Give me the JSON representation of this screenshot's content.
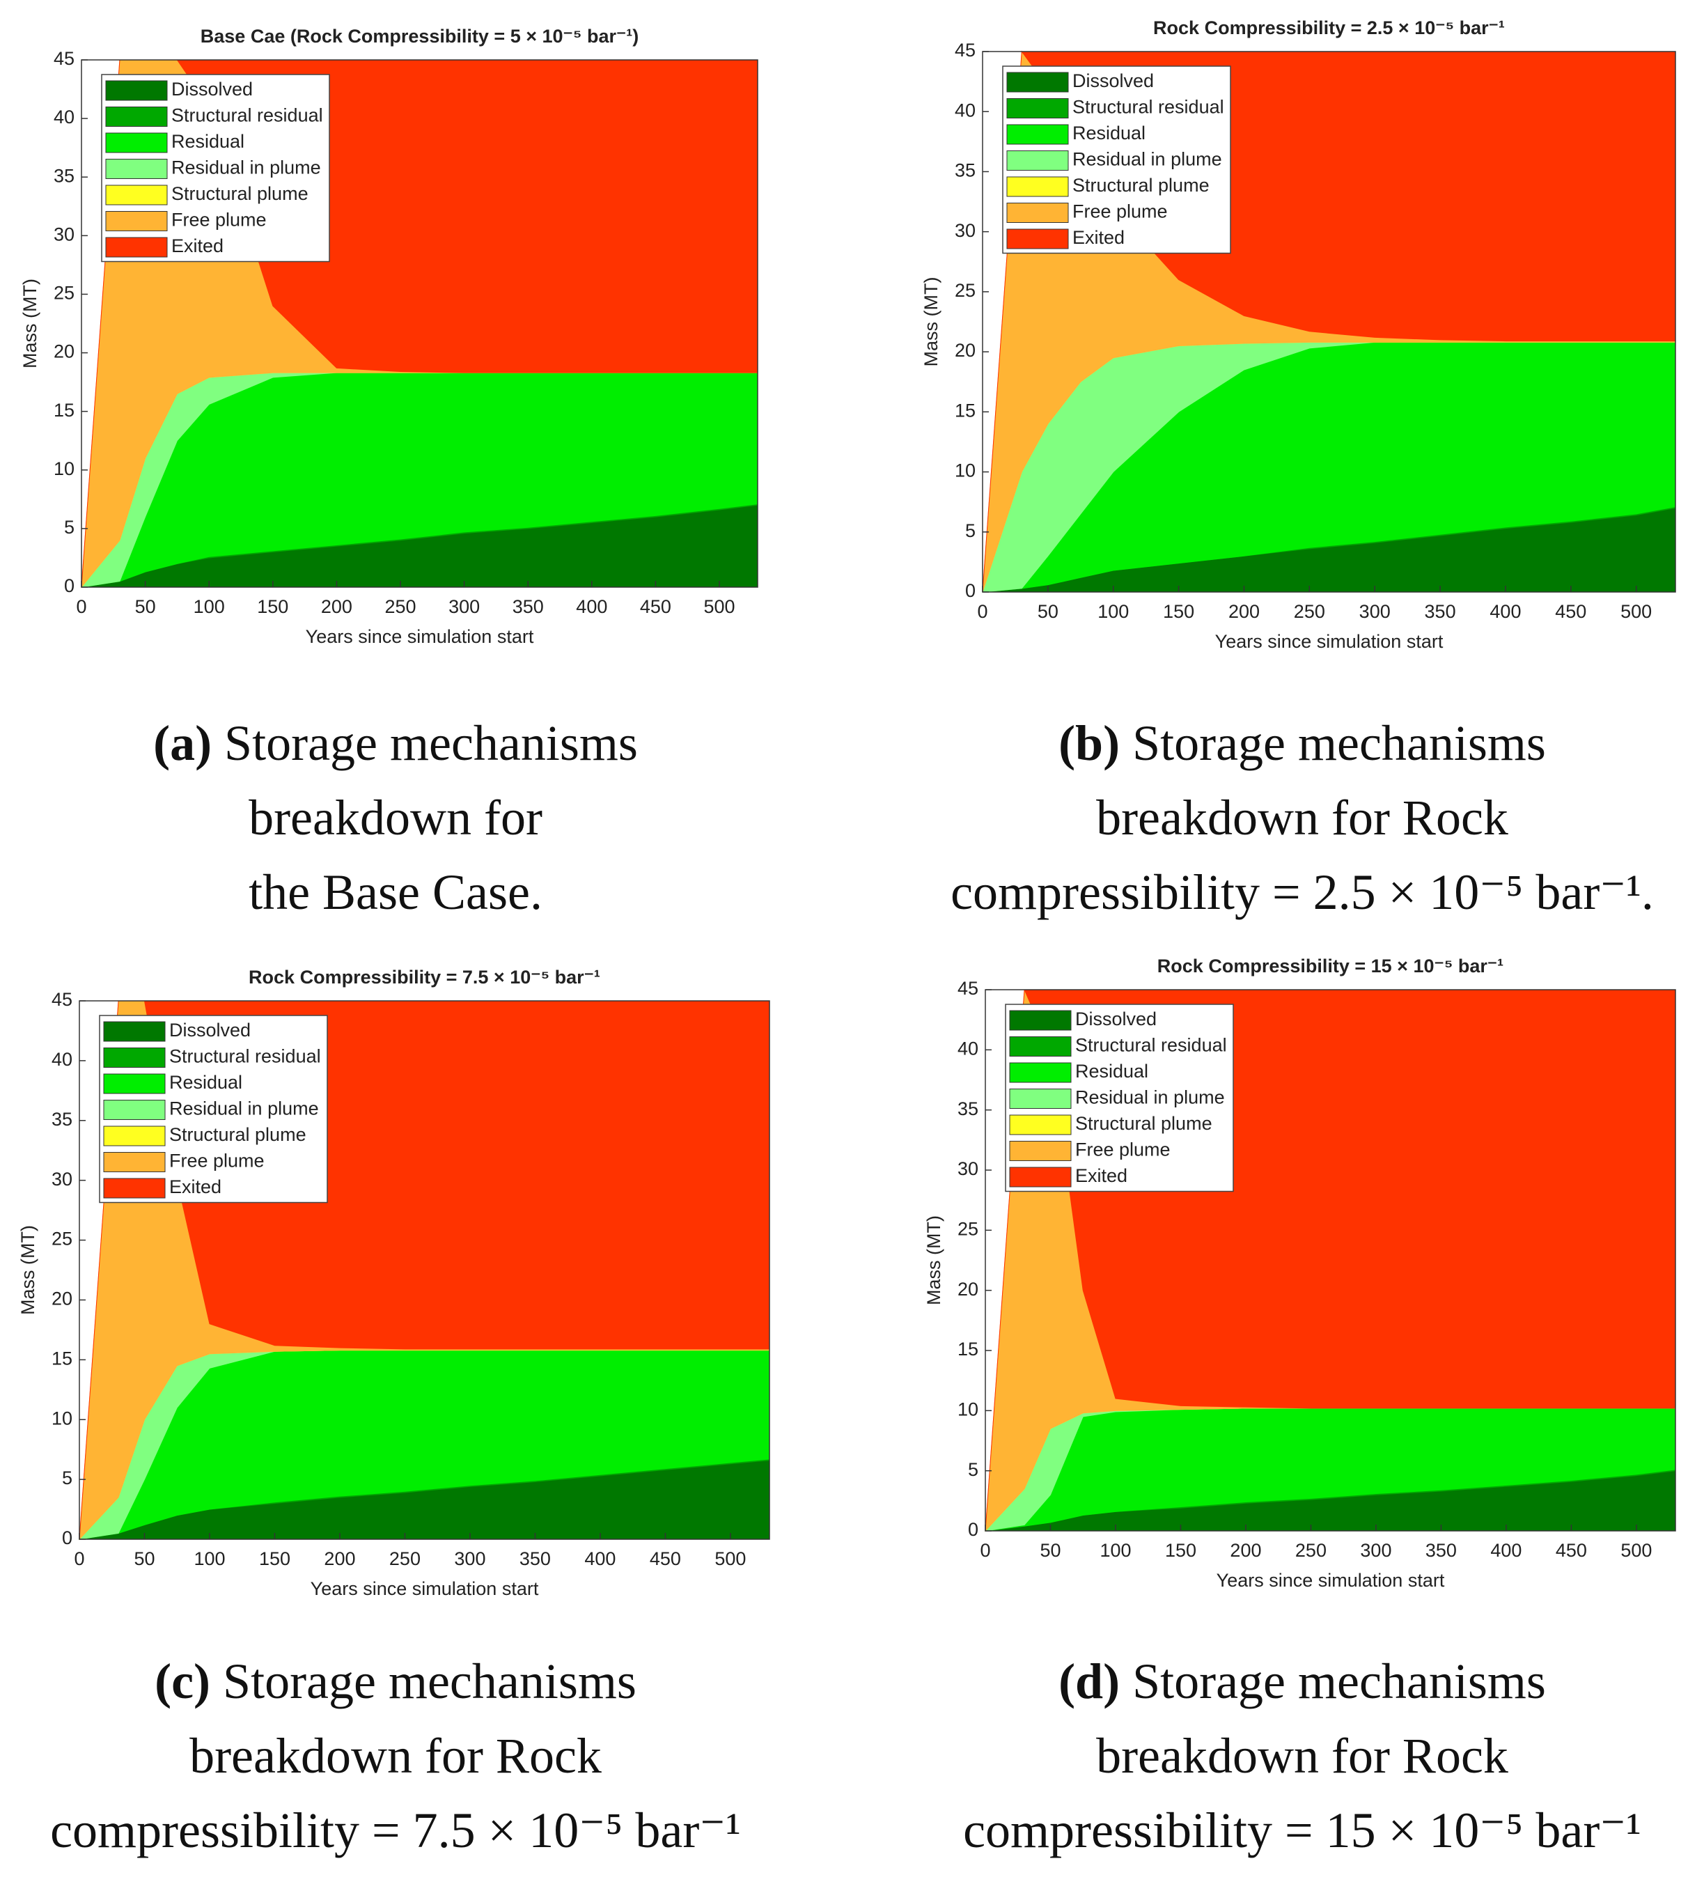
{
  "chart_data": [
    {
      "type": "stacked_area",
      "title": "Base Cae (Rock Compressibility = 5 × 10⁻⁵  bar⁻¹)",
      "x_label": "Years since simulation start",
      "y_label": "Mass (MT)",
      "x": [
        0,
        30,
        50,
        75,
        100,
        150,
        200,
        250,
        300,
        350,
        400,
        450,
        500,
        530
      ],
      "series": [
        {
          "name": "Dissolved",
          "color": "#007800",
          "values": [
            0,
            0.5,
            1.3,
            2,
            2.5,
            3,
            3.5,
            4,
            4.6,
            5,
            5.5,
            6,
            6.6,
            7
          ]
        },
        {
          "name": "Structural residual",
          "color": "#00a800",
          "values": [
            0,
            0,
            0,
            0,
            0.1,
            0.1,
            0.1,
            0.1,
            0.1,
            0.1,
            0.1,
            0.1,
            0.1,
            0.1
          ]
        },
        {
          "name": "Residual",
          "color": "#00ee00",
          "values": [
            0,
            0,
            4.7,
            10.5,
            13,
            14.8,
            14.7,
            14.2,
            13.6,
            13.2,
            12.7,
            12.2,
            11.6,
            11.2
          ]
        },
        {
          "name": "Residual in plume",
          "color": "#80ff80",
          "values": [
            0,
            3.5,
            5,
            4,
            2.3,
            0.4,
            0,
            0,
            0,
            0,
            0,
            0,
            0,
            0
          ]
        },
        {
          "name": "Structural plume",
          "color": "#ffff20",
          "values": [
            0,
            0,
            0,
            0,
            0,
            0,
            0,
            0,
            0,
            0,
            0,
            0,
            0,
            0
          ]
        },
        {
          "name": "Free plume",
          "color": "#ffb434",
          "values": [
            0,
            41,
            34,
            28.5,
            23.1,
            5.7,
            0.4,
            0.1,
            0,
            0,
            0,
            0,
            0,
            0
          ]
        },
        {
          "name": "Exited",
          "color": "#ff3300",
          "values": [
            0,
            0,
            0,
            0,
            4,
            21,
            26.3,
            26.6,
            26.7,
            26.7,
            26.7,
            26.7,
            26.7,
            26.7
          ]
        }
      ],
      "xlim": [
        0,
        530
      ],
      "xticks": [
        0,
        50,
        100,
        150,
        200,
        250,
        300,
        350,
        400,
        450,
        500
      ],
      "ylim": [
        0,
        45
      ],
      "yticks": [
        0,
        5,
        10,
        15,
        20,
        25,
        30,
        35,
        40,
        45
      ],
      "legend": "upper left",
      "caption_label": "(a)",
      "caption_lines": [
        "Storage mechanisms",
        "breakdown for",
        "the Base Case."
      ]
    },
    {
      "type": "stacked_area",
      "title": "Rock Compressibility = 2.5 × 10⁻⁵  bar⁻¹",
      "x_label": "Years since simulation start",
      "y_label": "Mass (MT)",
      "x": [
        0,
        30,
        50,
        75,
        100,
        150,
        200,
        250,
        300,
        350,
        400,
        450,
        500,
        530
      ],
      "series": [
        {
          "name": "Dissolved",
          "color": "#007800",
          "values": [
            0,
            0.3,
            0.6,
            1.2,
            1.8,
            2.4,
            3,
            3.6,
            4.1,
            4.7,
            5.3,
            5.8,
            6.4,
            7
          ]
        },
        {
          "name": "Structural residual",
          "color": "#00a800",
          "values": [
            0,
            0,
            0,
            0,
            0,
            0,
            0,
            0.1,
            0.1,
            0.1,
            0.1,
            0.1,
            0.1,
            0.1
          ]
        },
        {
          "name": "Residual",
          "color": "#00ee00",
          "values": [
            0,
            0,
            2.4,
            5.3,
            8.2,
            12.6,
            15.5,
            16.6,
            16.6,
            16,
            15.4,
            14.9,
            14.3,
            13.7
          ]
        },
        {
          "name": "Residual in plume",
          "color": "#80ff80",
          "values": [
            0,
            9.7,
            11,
            11,
            9.5,
            5.5,
            2.2,
            0.5,
            0,
            0,
            0,
            0,
            0,
            0
          ]
        },
        {
          "name": "Structural plume",
          "color": "#ffff20",
          "values": [
            0,
            0,
            0,
            0,
            0,
            0,
            0,
            0,
            0,
            0,
            0,
            0,
            0,
            0
          ]
        },
        {
          "name": "Free plume",
          "color": "#ffb434",
          "values": [
            0,
            35,
            28,
            19.5,
            12.5,
            5.5,
            2.3,
            0.9,
            0.4,
            0.2,
            0.1,
            0.1,
            0.1,
            0.1
          ]
        },
        {
          "name": "Exited",
          "color": "#ff3300",
          "values": [
            0,
            0,
            3,
            8,
            13,
            19,
            22,
            23.3,
            23.8,
            24,
            24.1,
            24.1,
            24.1,
            24.1
          ]
        }
      ],
      "xlim": [
        0,
        530
      ],
      "xticks": [
        0,
        50,
        100,
        150,
        200,
        250,
        300,
        350,
        400,
        450,
        500
      ],
      "ylim": [
        0,
        45
      ],
      "yticks": [
        0,
        5,
        10,
        15,
        20,
        25,
        30,
        35,
        40,
        45
      ],
      "legend": "upper left",
      "caption_label": "(b)",
      "caption_lines": [
        "Storage mechanisms",
        "breakdown for Rock",
        "compressibility = 2.5 × 10⁻⁵ bar⁻¹."
      ]
    },
    {
      "type": "stacked_area",
      "title": "Rock Compressibility = 7.5 × 10⁻⁵  bar⁻¹",
      "x_label": "Years since simulation start",
      "y_label": "Mass (MT)",
      "x": [
        0,
        30,
        50,
        75,
        100,
        150,
        200,
        250,
        300,
        350,
        400,
        450,
        500,
        530
      ],
      "series": [
        {
          "name": "Dissolved",
          "color": "#007800",
          "values": [
            0,
            0.5,
            1.2,
            2,
            2.5,
            3,
            3.5,
            3.9,
            4.4,
            4.8,
            5.3,
            5.8,
            6.3,
            6.6
          ]
        },
        {
          "name": "Structural residual",
          "color": "#00a800",
          "values": [
            0,
            0,
            0,
            0,
            0,
            0.1,
            0.1,
            0.1,
            0.1,
            0.1,
            0.1,
            0.1,
            0.1,
            0.1
          ]
        },
        {
          "name": "Residual",
          "color": "#00ee00",
          "values": [
            0,
            0,
            3.8,
            9,
            11.8,
            12.6,
            12.2,
            11.8,
            11.3,
            10.9,
            10.4,
            9.9,
            9.4,
            9.1
          ]
        },
        {
          "name": "Residual in plume",
          "color": "#80ff80",
          "values": [
            0,
            3,
            5,
            3.5,
            1.2,
            0,
            0,
            0,
            0,
            0,
            0,
            0,
            0,
            0
          ]
        },
        {
          "name": "Structural plume",
          "color": "#ffff20",
          "values": [
            0,
            0,
            0,
            0,
            0,
            0,
            0,
            0,
            0,
            0,
            0,
            0,
            0,
            0
          ]
        },
        {
          "name": "Free plume",
          "color": "#ffb434",
          "values": [
            0,
            41.5,
            35,
            15.5,
            2.5,
            0.5,
            0.2,
            0.1,
            0.1,
            0.1,
            0.1,
            0.1,
            0.1,
            0.1
          ]
        },
        {
          "name": "Exited",
          "color": "#ff3300",
          "values": [
            0,
            0,
            0,
            15,
            27,
            28.8,
            29,
            29.1,
            29.1,
            29.1,
            29.1,
            29.1,
            29.1,
            29.1
          ]
        }
      ],
      "xlim": [
        0,
        530
      ],
      "xticks": [
        0,
        50,
        100,
        150,
        200,
        250,
        300,
        350,
        400,
        450,
        500
      ],
      "ylim": [
        0,
        45
      ],
      "yticks": [
        0,
        5,
        10,
        15,
        20,
        25,
        30,
        35,
        40,
        45
      ],
      "legend": "upper left",
      "caption_label": "(c)",
      "caption_lines": [
        "Storage mechanisms",
        "breakdown for Rock",
        "compressibility = 7.5 × 10⁻⁵ bar⁻¹"
      ]
    },
    {
      "type": "stacked_area",
      "title": "Rock Compressibility = 15 × 10⁻⁵  bar⁻¹",
      "x_label": "Years since simulation start",
      "y_label": "Mass (MT)",
      "x": [
        0,
        30,
        50,
        75,
        100,
        150,
        200,
        250,
        300,
        350,
        400,
        450,
        500,
        530
      ],
      "series": [
        {
          "name": "Dissolved",
          "color": "#007800",
          "values": [
            0,
            0.4,
            0.7,
            1.3,
            1.6,
            1.9,
            2.3,
            2.6,
            3,
            3.3,
            3.7,
            4.1,
            4.6,
            5
          ]
        },
        {
          "name": "Structural residual",
          "color": "#00a800",
          "values": [
            0,
            0,
            0,
            0,
            0,
            0.1,
            0.1,
            0.1,
            0.1,
            0.1,
            0.1,
            0.1,
            0.1,
            0.1
          ]
        },
        {
          "name": "Residual",
          "color": "#00ee00",
          "values": [
            0,
            0.1,
            2.3,
            8.2,
            8.3,
            8.1,
            7.8,
            7.5,
            7.1,
            6.8,
            6.4,
            6,
            5.5,
            5.1
          ]
        },
        {
          "name": "Residual in plume",
          "color": "#80ff80",
          "values": [
            0,
            3,
            5.5,
            0.3,
            0.1,
            0,
            0,
            0,
            0,
            0,
            0,
            0,
            0,
            0
          ]
        },
        {
          "name": "Structural plume",
          "color": "#ffff20",
          "values": [
            0,
            0,
            0,
            0,
            0,
            0,
            0,
            0,
            0,
            0,
            0,
            0,
            0,
            0
          ]
        },
        {
          "name": "Free plume",
          "color": "#ffb434",
          "values": [
            0,
            41.5,
            31.5,
            10.2,
            1,
            0.3,
            0.1,
            0,
            0,
            0,
            0,
            0,
            0,
            0
          ]
        },
        {
          "name": "Exited",
          "color": "#ff3300",
          "values": [
            0,
            0,
            5,
            25,
            34,
            34.6,
            34.7,
            34.8,
            34.8,
            34.8,
            34.8,
            34.8,
            34.8,
            34.8
          ]
        }
      ],
      "xlim": [
        0,
        530
      ],
      "xticks": [
        0,
        50,
        100,
        150,
        200,
        250,
        300,
        350,
        400,
        450,
        500
      ],
      "ylim": [
        0,
        45
      ],
      "yticks": [
        0,
        5,
        10,
        15,
        20,
        25,
        30,
        35,
        40,
        45
      ],
      "legend": "upper left",
      "caption_label": "(d)",
      "caption_lines": [
        "Storage mechanisms",
        "breakdown for Rock",
        "compressibility = 15 × 10⁻⁵ bar⁻¹"
      ]
    }
  ]
}
